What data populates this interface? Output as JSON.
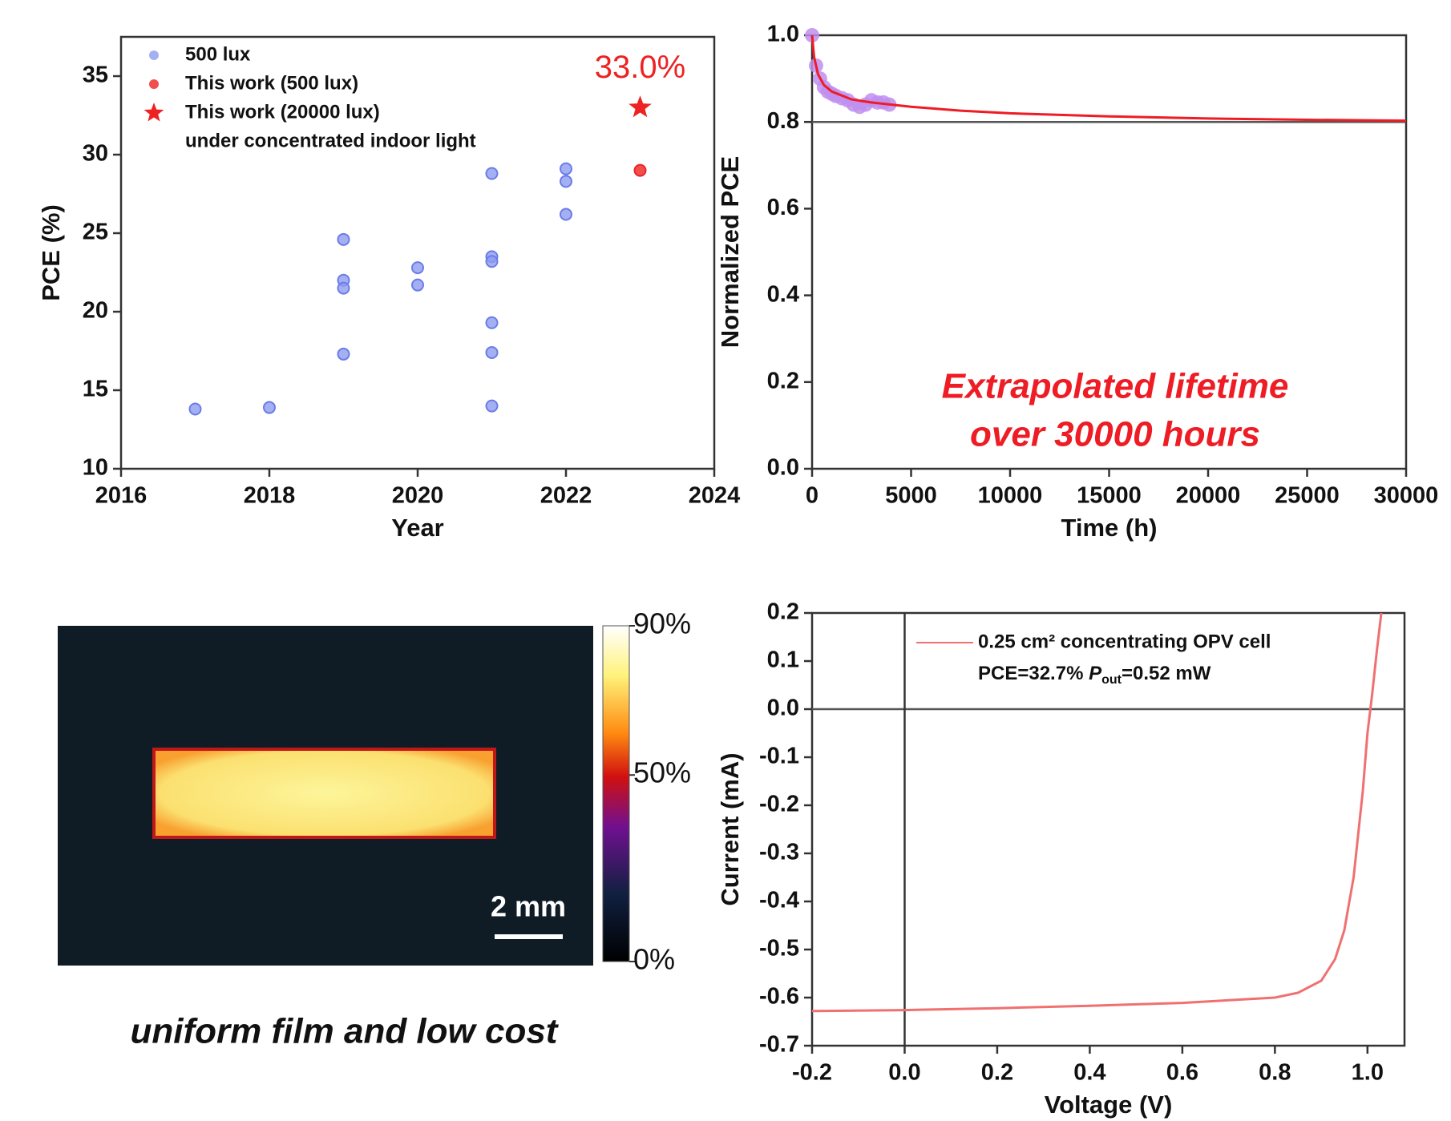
{
  "chart_data": [
    {
      "type": "scatter",
      "xlabel": "Year",
      "ylabel": "PCE (%)",
      "xlim": [
        2016,
        2024
      ],
      "xticks": [
        2016,
        2018,
        2020,
        2022,
        2024
      ],
      "ylim": [
        10,
        37.5
      ],
      "yticks": [
        10,
        15,
        20,
        25,
        30,
        35
      ],
      "legend": "upper left",
      "legend_note": "under concentrated indoor light",
      "series": [
        {
          "name": "500 lux",
          "color": "#8f9cf0",
          "marker": "circle",
          "x": [
            2017,
            2018,
            2019,
            2019,
            2019,
            2019,
            2020,
            2020,
            2021,
            2021,
            2021,
            2021,
            2021,
            2021,
            2022,
            2022,
            2022
          ],
          "values": [
            13.8,
            13.9,
            24.6,
            22.0,
            21.5,
            17.3,
            22.8,
            21.7,
            28.8,
            23.5,
            23.2,
            19.3,
            17.4,
            14.0,
            29.1,
            28.3,
            26.2
          ]
        },
        {
          "name": "This work (500 lux)",
          "color": "#ee2222",
          "marker": "circle",
          "x": [
            2023
          ],
          "values": [
            29.0
          ]
        },
        {
          "name": "This work (20000 lux)",
          "color": "#ee2222",
          "marker": "star",
          "x": [
            2023
          ],
          "values": [
            33.0
          ],
          "value_labels": [
            "33.0%"
          ]
        }
      ]
    },
    {
      "type": "line",
      "xlabel": "Time (h)",
      "ylabel": "Normalized PCE",
      "xlim": [
        0,
        30000
      ],
      "xticks": [
        0,
        5000,
        10000,
        15000,
        20000,
        25000,
        30000
      ],
      "ylim": [
        0,
        1.0
      ],
      "yticks": [
        {
          "value": 0,
          "label": "0.0"
        },
        0.2,
        0.4,
        0.6,
        0.8,
        {
          "value": 1.0,
          "label": "1.0"
        }
      ],
      "hline": 0.8,
      "annotation": [
        "Extrapolated lifetime",
        "over 30000 hours"
      ],
      "series": [
        {
          "color": "#c08ef0",
          "marker": "circle",
          "x": [
            0,
            200,
            400,
            600,
            800,
            1000,
            1200,
            1500,
            1800,
            2100,
            2400,
            2700,
            3000,
            3300,
            3600,
            3900
          ],
          "values": [
            1.0,
            0.93,
            0.9,
            0.88,
            0.87,
            0.865,
            0.86,
            0.855,
            0.85,
            0.84,
            0.835,
            0.84,
            0.85,
            0.845,
            0.845,
            0.84
          ]
        },
        {
          "color": "#ee1c24",
          "marker": "line",
          "x": [
            0,
            100,
            300,
            600,
            1000,
            2000,
            3000,
            5000,
            7500,
            10000,
            15000,
            20000,
            25000,
            30000
          ],
          "values": [
            1.0,
            0.95,
            0.91,
            0.885,
            0.87,
            0.852,
            0.845,
            0.835,
            0.826,
            0.82,
            0.813,
            0.808,
            0.805,
            0.803
          ]
        }
      ]
    },
    {
      "type": "image",
      "colorbar_lim": [
        0,
        90
      ],
      "colorbar_ticks": [
        {
          "value": 90,
          "label": "90%"
        },
        {
          "value": 50,
          "label": "50%"
        },
        {
          "value": 0,
          "label": "0%"
        }
      ],
      "scale_bar": "2 mm",
      "caption": "uniform film and low cost"
    },
    {
      "type": "line",
      "xlabel": "Voltage (V)",
      "ylabel": "Current (mA)",
      "xlim": [
        -0.2,
        1.08
      ],
      "xticks": [
        -0.2,
        {
          "value": 0,
          "label": "0.0"
        },
        0.2,
        0.4,
        0.6,
        0.8,
        {
          "value": 1.0,
          "label": "1.0"
        }
      ],
      "ylim": [
        -0.7,
        0.2
      ],
      "yticks": [
        -0.7,
        -0.6,
        -0.5,
        -0.4,
        -0.3,
        -0.2,
        -0.1,
        {
          "value": 0,
          "label": "0.0"
        },
        0.1,
        0.2
      ],
      "hline": 0,
      "vline": 0,
      "legend": "upper center",
      "annotation_parts": [
        "PCE=32.7% ",
        "P",
        "out",
        "=0.52 mW"
      ],
      "series": [
        {
          "name": "0.25 cm² concentrating OPV cell",
          "color": "#f07070",
          "marker": "line",
          "x": [
            -0.2,
            0,
            0.2,
            0.4,
            0.6,
            0.8,
            0.85,
            0.9,
            0.93,
            0.95,
            0.97,
            0.99,
            1.0,
            1.01,
            1.02,
            1.03
          ],
          "values": [
            -0.628,
            -0.626,
            -0.622,
            -0.617,
            -0.611,
            -0.6,
            -0.59,
            -0.565,
            -0.52,
            -0.46,
            -0.35,
            -0.17,
            -0.05,
            0.03,
            0.12,
            0.2
          ]
        }
      ]
    }
  ]
}
